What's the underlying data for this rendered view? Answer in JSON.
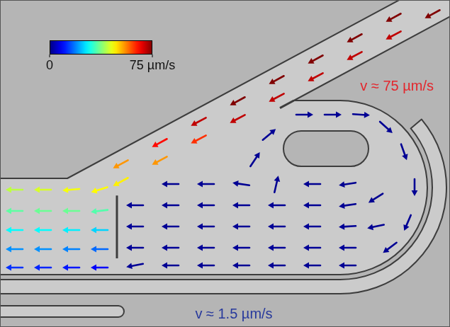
{
  "chart_data": {
    "type": "quiver",
    "xlim": [
      0,
      635
    ],
    "ylim": [
      462,
      0
    ],
    "tick_labels": false,
    "grid": false,
    "vectors": {
      "x": [
        555,
        555,
        500,
        500,
        445,
        445,
        390,
        390,
        335,
        335,
        280,
        280,
        225,
        225,
        170,
        170,
        610,
        20,
        60,
        100,
        140,
        20,
        60,
        100,
        140,
        20,
        60,
        100,
        140,
        20,
        60,
        100,
        140,
        20,
        60,
        100,
        140,
        240,
        290,
        340,
        440,
        490,
        190,
        240,
        290,
        340,
        390,
        440,
        490,
        190,
        240,
        290,
        340,
        390,
        440,
        490,
        190,
        240,
        290,
        340,
        390,
        440,
        490,
        190,
        240,
        290,
        340,
        390,
        440,
        490,
        390,
        360,
        380,
        430,
        470,
        510,
        545,
        570,
        585,
        575,
        550,
        530,
        530
      ],
      "y": [
        25,
        50,
        54,
        79,
        84,
        109,
        113,
        138,
        143,
        168,
        172,
        197,
        202,
        227,
        232,
        257,
        20,
        268,
        268,
        268,
        268,
        298,
        298,
        298,
        298,
        325,
        325,
        325,
        325,
        352,
        352,
        352,
        352,
        378,
        378,
        378,
        378,
        260,
        260,
        260,
        260,
        260,
        290,
        290,
        290,
        290,
        290,
        290,
        290,
        320,
        320,
        320,
        320,
        320,
        320,
        320,
        350,
        350,
        350,
        350,
        350,
        350,
        350,
        375,
        375,
        375,
        375,
        375,
        375,
        375,
        260,
        225,
        190,
        162,
        162,
        162,
        180,
        215,
        265,
        315,
        350,
        280,
        320
      ],
      "u": [
        -66,
        -62,
        -66,
        -62,
        -66,
        -62,
        -66,
        -62,
        -66,
        -62,
        -62,
        -55,
        -57,
        -48,
        -48,
        -42,
        -66,
        -42,
        -44,
        -46,
        -45,
        -35,
        -36,
        -36,
        -34,
        -28,
        -28,
        -27,
        -25,
        -20,
        -20,
        -19,
        -17,
        -13,
        -12,
        -11,
        -9,
        -1.3,
        -1.4,
        -1.4,
        -1.3,
        -1.3,
        -1.6,
        -1.5,
        -1.5,
        -1.5,
        -1.5,
        -1.5,
        -1.4,
        -1.7,
        -1.6,
        -1.6,
        -1.6,
        -1.6,
        -1.6,
        -1.6,
        -1.7,
        -1.7,
        -1.7,
        -1.7,
        -1.7,
        -1.7,
        -1.7,
        -1.6,
        -1.5,
        -1.5,
        -1.5,
        -1.5,
        -1.5,
        -1.5,
        0.3,
        0.8,
        1.2,
        1.5,
        1.5,
        1.5,
        1.1,
        0.5,
        0,
        -0.6,
        -1.2,
        -1.1,
        -1.4
      ],
      "v": [
        -36,
        -33,
        -36,
        -33,
        -36,
        -33,
        -36,
        -33,
        -36,
        -33,
        -33,
        -29,
        -31,
        -26,
        -26,
        -23,
        -36,
        0,
        0,
        -4,
        -14,
        0,
        0,
        0,
        -4,
        0,
        0,
        0,
        0,
        0,
        0,
        0,
        0,
        0,
        0,
        0,
        0,
        0,
        0,
        0.2,
        0,
        -0.2,
        0,
        0,
        0,
        0,
        0,
        0,
        -0.2,
        0,
        0,
        0,
        0,
        0,
        0,
        -0.1,
        0,
        0,
        0,
        0,
        0,
        0,
        0,
        -0.3,
        0,
        0,
        0,
        0,
        0,
        0,
        1.3,
        1.2,
        1.0,
        0,
        0,
        -0.1,
        -1.0,
        -1.4,
        -1.5,
        -1.4,
        -0.9,
        -0.7,
        -0.3
      ]
    },
    "colorbar": {
      "range": [
        0,
        75
      ],
      "ticks": [
        0,
        {
          "value": 75,
          "label": "75 µm/s"
        }
      ]
    },
    "annotations": [
      {
        "text": "v ≈ 75 µm/s",
        "color": "#e3262c"
      },
      {
        "text": "v ≈ 1.5 µm/s",
        "color": "#27399c"
      }
    ]
  }
}
